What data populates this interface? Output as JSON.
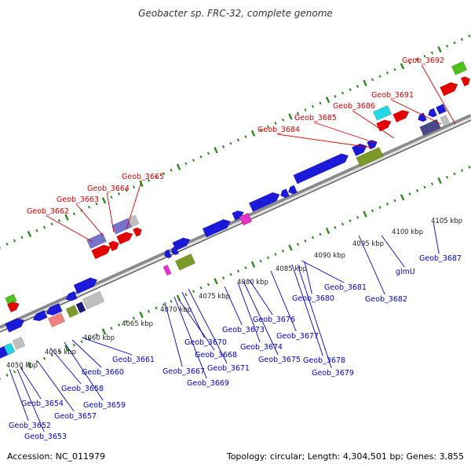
{
  "title": "Geobacter sp. FRC-32, complete genome",
  "footer": {
    "accession": "Accession: NC_011979",
    "stats": "Topology: circular; Length: 4,304,501 bp; Genes: 3,855"
  },
  "colors": {
    "top_label": "#d40000",
    "bottom_label": "#0000c8",
    "tick": "#2d8a1e",
    "backbone": "#8a8a8a",
    "gene_blue": "#1a1ad8",
    "gene_red": "#e60000",
    "gene_green": "#4ec21c",
    "gene_cyan": "#22d8e6",
    "gene_purple": "#7373cc",
    "gene_olive": "#7b9a2a",
    "gene_gray": "#bfbfbf",
    "gene_salmon": "#f08080",
    "gene_magenta": "#e632c8",
    "gene_slate": "#4a4a8a",
    "gene_navy": "#1a1a7a"
  },
  "kbp_labels": [
    "4050 kbp",
    "4055 kbp",
    "4060 kbp",
    "4065 kbp",
    "4070 kbp",
    "4075 kbp",
    "4080 kbp",
    "4085 kbp",
    "4090 kbp",
    "4095 kbp",
    "4100 kbp",
    "4105 kbp"
  ],
  "top_genes": [
    "Geob_3662",
    "Geob_3663",
    "Geob_3664",
    "Geob_3665",
    "Geob_3684",
    "Geob_3685",
    "Geob_3686",
    "Geob_3691",
    "Geob_3692"
  ],
  "bottom_genes": [
    "Geob_3652",
    "Geob_3653",
    "Geob_3654",
    "Geob_3657",
    "Geob_3658",
    "Geob_3659",
    "Geob_3660",
    "Geob_3661",
    "Geob_3667",
    "Geob_3668",
    "Geob_3669",
    "Geob_3670",
    "Geob_3671",
    "Geob_3673",
    "Geob_3674",
    "Geob_3675",
    "Geob_3676",
    "Geob_3677",
    "Geob_3678",
    "Geob_3679",
    "Geob_3680",
    "Geob_3681",
    "Geob_3682",
    "glmU",
    "Geob_3687"
  ]
}
